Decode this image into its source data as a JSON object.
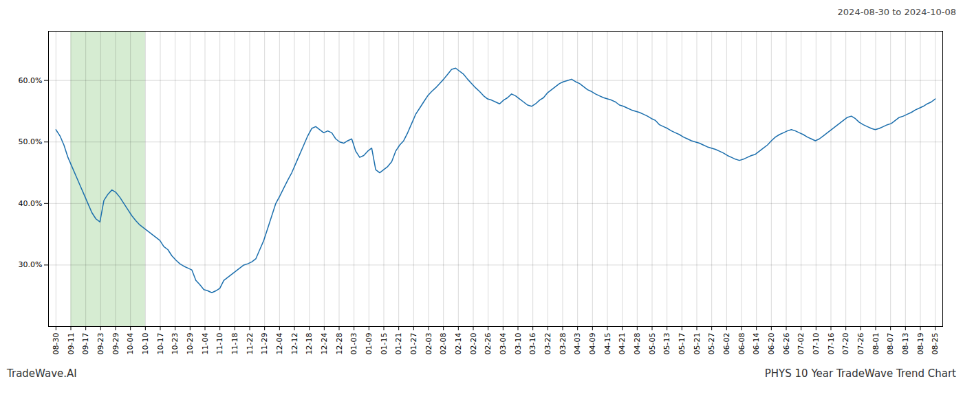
{
  "chart_data": {
    "type": "line",
    "title": "PHYS 10 Year TradeWave Trend Chart",
    "subtitle": "2024-08-30 to 2024-10-08",
    "annotations": [
      {
        "text": "TradeWave.AI"
      }
    ],
    "color": "#1c6fad",
    "grid": true,
    "highlight": {
      "x": [
        220,
        1320
      ],
      "color": "#d6ecd2"
    },
    "xlim": [
      -110,
      13090
    ],
    "xticks": [
      {
        "value": 0,
        "label": "08-30"
      },
      {
        "value": 220,
        "label": "09-11"
      },
      {
        "value": 440,
        "label": "09-17"
      },
      {
        "value": 660,
        "label": "09-23"
      },
      {
        "value": 880,
        "label": "09-29"
      },
      {
        "value": 1100,
        "label": "10-04"
      },
      {
        "value": 1320,
        "label": "10-10"
      },
      {
        "value": 1540,
        "label": "10-17"
      },
      {
        "value": 1760,
        "label": "10-23"
      },
      {
        "value": 1980,
        "label": "10-29"
      },
      {
        "value": 2200,
        "label": "11-04"
      },
      {
        "value": 2420,
        "label": "11-10"
      },
      {
        "value": 2640,
        "label": "11-18"
      },
      {
        "value": 2860,
        "label": "11-22"
      },
      {
        "value": 3080,
        "label": "11-29"
      },
      {
        "value": 3300,
        "label": "12-04"
      },
      {
        "value": 3520,
        "label": "12-12"
      },
      {
        "value": 3740,
        "label": "12-18"
      },
      {
        "value": 3960,
        "label": "12-24"
      },
      {
        "value": 4180,
        "label": "12-28"
      },
      {
        "value": 4400,
        "label": "01-03"
      },
      {
        "value": 4620,
        "label": "01-09"
      },
      {
        "value": 4840,
        "label": "01-15"
      },
      {
        "value": 5060,
        "label": "01-21"
      },
      {
        "value": 5280,
        "label": "01-27"
      },
      {
        "value": 5500,
        "label": "02-03"
      },
      {
        "value": 5720,
        "label": "02-08"
      },
      {
        "value": 5940,
        "label": "02-14"
      },
      {
        "value": 6160,
        "label": "02-20"
      },
      {
        "value": 6380,
        "label": "02-26"
      },
      {
        "value": 6600,
        "label": "03-04"
      },
      {
        "value": 6820,
        "label": "03-10"
      },
      {
        "value": 7040,
        "label": "03-16"
      },
      {
        "value": 7260,
        "label": "03-22"
      },
      {
        "value": 7480,
        "label": "03-28"
      },
      {
        "value": 7700,
        "label": "04-03"
      },
      {
        "value": 7920,
        "label": "04-09"
      },
      {
        "value": 8140,
        "label": "04-15"
      },
      {
        "value": 8360,
        "label": "04-21"
      },
      {
        "value": 8580,
        "label": "04-28"
      },
      {
        "value": 8800,
        "label": "05-05"
      },
      {
        "value": 9020,
        "label": "05-13"
      },
      {
        "value": 9240,
        "label": "05-17"
      },
      {
        "value": 9460,
        "label": "05-21"
      },
      {
        "value": 9680,
        "label": "05-27"
      },
      {
        "value": 9900,
        "label": "06-02"
      },
      {
        "value": 10120,
        "label": "06-08"
      },
      {
        "value": 10340,
        "label": "06-14"
      },
      {
        "value": 10560,
        "label": "06-20"
      },
      {
        "value": 10780,
        "label": "06-26"
      },
      {
        "value": 11000,
        "label": "07-02"
      },
      {
        "value": 11220,
        "label": "07-10"
      },
      {
        "value": 11440,
        "label": "07-16"
      },
      {
        "value": 11660,
        "label": "07-20"
      },
      {
        "value": 11880,
        "label": "07-26"
      },
      {
        "value": 12100,
        "label": "08-01"
      },
      {
        "value": 12320,
        "label": "08-07"
      },
      {
        "value": 12540,
        "label": "08-13"
      },
      {
        "value": 12760,
        "label": "08-19"
      },
      {
        "value": 12980,
        "label": "08-25"
      }
    ],
    "ylim": [
      20,
      68
    ],
    "yticks": [
      {
        "value": 30.0,
        "label": "30.0%"
      },
      {
        "value": 40.0,
        "label": "40.0%"
      },
      {
        "value": 50.0,
        "label": "50.0%"
      },
      {
        "value": 60.0,
        "label": "60.0%"
      }
    ],
    "x": [
      0,
      59,
      118,
      177,
      236,
      295,
      354,
      413,
      472,
      531,
      590,
      649,
      708,
      767,
      826,
      885,
      944,
      1003,
      1062,
      1121,
      1180,
      1239,
      1298,
      1357,
      1416,
      1475,
      1534,
      1593,
      1652,
      1711,
      1770,
      1829,
      1888,
      1947,
      2006,
      2065,
      2124,
      2183,
      2242,
      2301,
      2360,
      2419,
      2478,
      2537,
      2596,
      2655,
      2714,
      2773,
      2832,
      2891,
      2950,
      3009,
      3068,
      3127,
      3186,
      3245,
      3304,
      3363,
      3422,
      3481,
      3540,
      3599,
      3658,
      3717,
      3776,
      3835,
      3894,
      3953,
      4012,
      4071,
      4130,
      4189,
      4248,
      4307,
      4366,
      4425,
      4484,
      4543,
      4602,
      4661,
      4720,
      4779,
      4838,
      4897,
      4956,
      5015,
      5074,
      5133,
      5192,
      5251,
      5310,
      5369,
      5428,
      5487,
      5546,
      5605,
      5664,
      5723,
      5782,
      5841,
      5900,
      5959,
      6018,
      6077,
      6136,
      6195,
      6254,
      6313,
      6372,
      6431,
      6490,
      6549,
      6608,
      6667,
      6726,
      6785,
      6844,
      6903,
      6962,
      7021,
      7080,
      7139,
      7198,
      7257,
      7316,
      7375,
      7434,
      7493,
      7552,
      7611,
      7670,
      7729,
      7788,
      7847,
      7906,
      7965,
      8024,
      8083,
      8142,
      8201,
      8260,
      8319,
      8378,
      8437,
      8496,
      8555,
      8614,
      8673,
      8732,
      8791,
      8850,
      8909,
      8968,
      9027,
      9086,
      9145,
      9204,
      9263,
      9322,
      9381,
      9440,
      9499,
      9558,
      9617,
      9676,
      9735,
      9794,
      9853,
      9912,
      9971,
      10030,
      10089,
      10148,
      10207,
      10266,
      10325,
      10384,
      10443,
      10502,
      10561,
      10620,
      10679,
      10738,
      10797,
      10856,
      10915,
      10974,
      11033,
      11092,
      11151,
      11210,
      11269,
      11328,
      11387,
      11446,
      11505,
      11564,
      11623,
      11682,
      11741,
      11800,
      11859,
      11918,
      11977,
      12036,
      12095,
      12154,
      12213,
      12272,
      12331,
      12390,
      12449,
      12508,
      12567,
      12626,
      12685,
      12744,
      12803,
      12862,
      12921,
      12980
    ],
    "values": [
      52.0,
      51.0,
      49.5,
      47.5,
      46.0,
      44.5,
      43.0,
      41.5,
      40.0,
      38.5,
      37.5,
      37.0,
      40.5,
      41.5,
      42.2,
      41.8,
      41.0,
      40.0,
      39.0,
      38.0,
      37.2,
      36.5,
      36.0,
      35.5,
      35.0,
      34.5,
      34.0,
      33.0,
      32.5,
      31.5,
      30.8,
      30.2,
      29.8,
      29.5,
      29.2,
      27.5,
      26.8,
      26.0,
      25.8,
      25.5,
      25.8,
      26.2,
      27.5,
      28.0,
      28.5,
      29.0,
      29.5,
      30.0,
      30.2,
      30.5,
      31.0,
      32.5,
      34.0,
      36.0,
      38.0,
      40.0,
      41.2,
      42.5,
      43.8,
      45.0,
      46.5,
      48.0,
      49.5,
      51.0,
      52.2,
      52.5,
      52.0,
      51.5,
      51.8,
      51.5,
      50.5,
      50.0,
      49.8,
      50.2,
      50.5,
      48.5,
      47.5,
      47.8,
      48.5,
      49.0,
      45.5,
      45.0,
      45.5,
      46.0,
      46.8,
      48.5,
      49.5,
      50.2,
      51.5,
      53.0,
      54.5,
      55.5,
      56.5,
      57.5,
      58.2,
      58.8,
      59.5,
      60.2,
      61.0,
      61.8,
      62.0,
      61.5,
      61.0,
      60.2,
      59.5,
      58.8,
      58.2,
      57.5,
      57.0,
      56.8,
      56.5,
      56.2,
      56.8,
      57.2,
      57.8,
      57.5,
      57.0,
      56.5,
      56.0,
      55.8,
      56.2,
      56.8,
      57.2,
      58.0,
      58.5,
      59.0,
      59.5,
      59.8,
      60.0,
      60.2,
      59.8,
      59.5,
      59.0,
      58.5,
      58.2,
      57.8,
      57.5,
      57.2,
      57.0,
      56.8,
      56.5,
      56.0,
      55.8,
      55.5,
      55.2,
      55.0,
      54.8,
      54.5,
      54.2,
      53.8,
      53.5,
      52.8,
      52.5,
      52.2,
      51.8,
      51.5,
      51.2,
      50.8,
      50.5,
      50.2,
      50.0,
      49.8,
      49.5,
      49.2,
      49.0,
      48.8,
      48.5,
      48.2,
      47.8,
      47.5,
      47.2,
      47.0,
      47.2,
      47.5,
      47.8,
      48.0,
      48.5,
      49.0,
      49.5,
      50.2,
      50.8,
      51.2,
      51.5,
      51.8,
      52.0,
      51.8,
      51.5,
      51.2,
      50.8,
      50.5,
      50.2,
      50.5,
      51.0,
      51.5,
      52.0,
      52.5,
      53.0,
      53.5,
      54.0,
      54.2,
      53.8,
      53.2,
      52.8,
      52.5,
      52.2,
      52.0,
      52.2,
      52.5,
      52.8,
      53.0,
      53.5,
      54.0,
      54.2,
      54.5,
      54.8,
      55.2,
      55.5,
      55.8,
      56.2,
      56.5,
      57.0
    ]
  }
}
